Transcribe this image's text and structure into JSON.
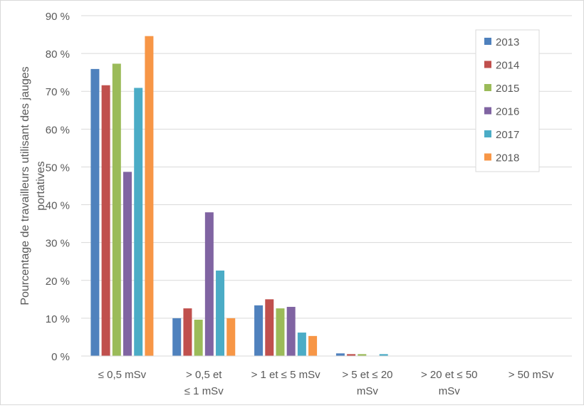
{
  "chart_data": {
    "type": "bar",
    "title": "",
    "xlabel": "",
    "ylabel": "Pourcentage de travailleurs utilisant des jauges portatives",
    "ylabel_lines": [
      "Pourcentage de travailleurs utilisant des jauges",
      "portatives"
    ],
    "ylim": [
      0,
      90
    ],
    "y_ticks": [
      0,
      10,
      20,
      30,
      40,
      50,
      60,
      70,
      80,
      90
    ],
    "y_tick_labels": [
      "0 %",
      "10 %",
      "20 %",
      "30 %",
      "40 %",
      "50 %",
      "60 %",
      "70 %",
      "80 %",
      "90 %"
    ],
    "grid": true,
    "legend_position": "top-right",
    "categories": [
      "≤ 0,5 mSv",
      "> 0,5 et ≤ 1 mSv",
      "> 1 et ≤ 5 mSv",
      "> 5 et ≤ 20 mSv",
      "> 20 et ≤ 50 mSv",
      "> 50 mSv"
    ],
    "category_label_lines": [
      [
        "≤ 0,5 mSv"
      ],
      [
        "> 0,5 et",
        "≤ 1 mSv"
      ],
      [
        "> 1 et ≤ 5 mSv"
      ],
      [
        "> 5 et ≤ 20",
        "mSv"
      ],
      [
        "> 20 et ≤ 50",
        "mSv"
      ],
      [
        "> 50 mSv"
      ]
    ],
    "series": [
      {
        "name": "2013",
        "color": "#4f81bd",
        "values": [
          75.9,
          10.0,
          13.4,
          0.7,
          0.0,
          0.0
        ]
      },
      {
        "name": "2014",
        "color": "#c0504d",
        "values": [
          71.6,
          12.6,
          15.0,
          0.5,
          0.0,
          0.0
        ]
      },
      {
        "name": "2015",
        "color": "#9bbb59",
        "values": [
          77.3,
          9.6,
          12.6,
          0.5,
          0.0,
          0.0
        ]
      },
      {
        "name": "2016",
        "color": "#8064a2",
        "values": [
          48.7,
          38.0,
          13.0,
          0.0,
          0.0,
          0.0
        ]
      },
      {
        "name": "2017",
        "color": "#4bacc6",
        "values": [
          70.9,
          22.6,
          6.2,
          0.5,
          0.0,
          0.0
        ]
      },
      {
        "name": "2018",
        "color": "#f79646",
        "values": [
          84.6,
          10.0,
          5.3,
          0.0,
          0.0,
          0.0
        ]
      }
    ]
  }
}
